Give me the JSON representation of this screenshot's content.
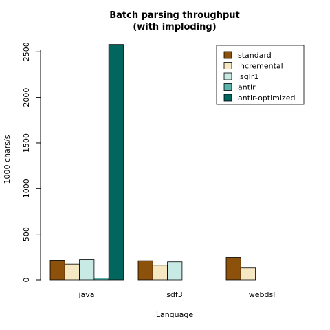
{
  "chart_data": {
    "type": "bar",
    "title": "Batch parsing throughput",
    "subtitle": "(with imploding)",
    "xlabel": "Language",
    "ylabel": "1000 chars/s",
    "categories": [
      "java",
      "sdf3",
      "webdsl"
    ],
    "ylim": [
      0,
      2600
    ],
    "yticks": [
      0,
      500,
      1000,
      1500,
      2000,
      2500
    ],
    "yticklabels": [
      "0",
      "500",
      "1000",
      "1500",
      "2000",
      "2500"
    ],
    "series": [
      {
        "name": "standard",
        "color": "#8c510a",
        "values": [
          215,
          210,
          245
        ]
      },
      {
        "name": "incremental",
        "color": "#f6e8c3",
        "values": [
          172,
          160,
          130
        ]
      },
      {
        "name": "jsglr1",
        "color": "#c7eae5",
        "values": [
          222,
          198,
          null
        ]
      },
      {
        "name": "antlr",
        "color": "#5ab4ac",
        "values": [
          18,
          null,
          null
        ]
      },
      {
        "name": "antlr-optimized",
        "color": "#01665e",
        "values": [
          2580,
          null,
          null
        ]
      }
    ],
    "grid": false,
    "legend_position": "top-right"
  }
}
